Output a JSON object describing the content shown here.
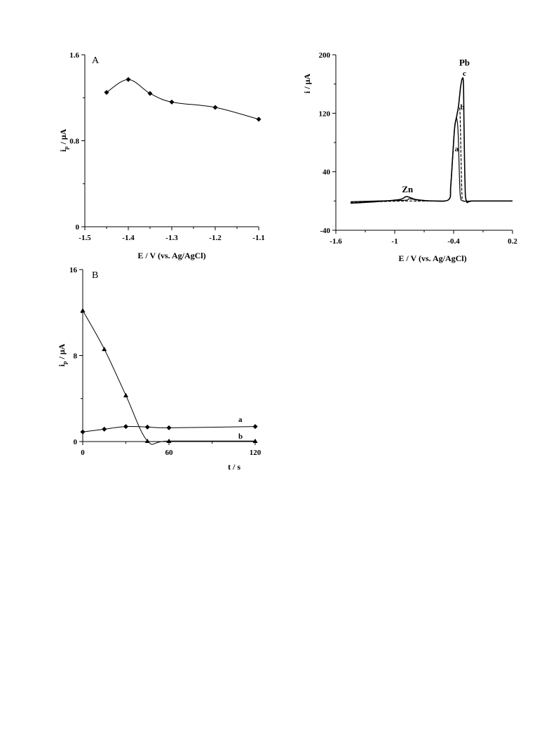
{
  "chart_data": [
    {
      "id": "A",
      "type": "scatter",
      "panel_label": "A",
      "xlabel": "E / V (vs. Ag/AgCl)",
      "ylabel_main": "i",
      "ylabel_sub": "p",
      "ylabel_rest": " / μA",
      "xlim": [
        -1.5,
        -1.1
      ],
      "ylim": [
        0,
        1.6
      ],
      "xticks": [
        -1.5,
        -1.4,
        -1.3,
        -1.2,
        -1.1
      ],
      "xtick_labels": [
        "-1.5",
        "-1.4",
        "-1.3",
        "-1.2",
        "-1.1"
      ],
      "yticks": [
        0,
        0.8,
        1.6
      ],
      "ytick_labels": [
        "0",
        "0.8",
        "1.6"
      ],
      "series": [
        {
          "marker": "diamond",
          "x": [
            -1.45,
            -1.4,
            -1.35,
            -1.3,
            -1.2,
            -1.1
          ],
          "y": [
            1.25,
            1.37,
            1.24,
            1.16,
            1.11,
            1.0
          ]
        }
      ]
    },
    {
      "id": "C",
      "type": "line",
      "xlabel": "E / V (vs. Ag/AgCl)",
      "ylabel": "i / μA",
      "xlim": [
        -1.6,
        0.2
      ],
      "ylim": [
        -40,
        200
      ],
      "xticks": [
        -1.6,
        -1.0,
        -0.4,
        0.2
      ],
      "xtick_labels": [
        "-1.6",
        "-1",
        "-0.4",
        "0.2"
      ],
      "yticks": [
        -40,
        40,
        120,
        200
      ],
      "ytick_labels": [
        "-40",
        "40",
        "120",
        "200"
      ],
      "annotations": [
        {
          "text": "Zn",
          "x": -0.87,
          "y": 12
        },
        {
          "text": "Pb",
          "x": -0.29,
          "y": 185
        },
        {
          "text": "c",
          "x": -0.29,
          "y": 171
        },
        {
          "text": "b",
          "x": -0.31,
          "y": 125
        },
        {
          "text": "a",
          "x": -0.37,
          "y": 68
        }
      ],
      "series": [
        {
          "name": "a",
          "dash": "solid",
          "x": [
            -1.45,
            -1.2,
            -0.9,
            -0.85,
            -0.75,
            -0.6,
            -0.45,
            -0.43,
            -0.41,
            -0.39,
            -0.37,
            -0.355,
            -0.34,
            -0.33,
            -0.3,
            -0.2,
            0.2
          ],
          "y": [
            -1,
            0,
            1,
            3,
            1,
            0,
            2,
            20,
            60,
            100,
            113,
            95,
            30,
            5,
            0,
            0,
            0
          ]
        },
        {
          "name": "b",
          "dash": "dashed",
          "x": [
            -1.45,
            -1.2,
            -0.9,
            -0.6,
            -0.45,
            -0.43,
            -0.41,
            -0.39,
            -0.37,
            -0.35,
            -0.335,
            -0.325,
            -0.315,
            -0.3,
            -0.2,
            0.2
          ],
          "y": [
            -2,
            -1,
            0,
            0,
            2,
            20,
            60,
            100,
            115,
            128,
            120,
            60,
            8,
            0,
            0,
            0
          ]
        },
        {
          "name": "c",
          "dash": "solid",
          "x": [
            -1.45,
            -1.2,
            -0.95,
            -0.88,
            -0.78,
            -0.6,
            -0.45,
            -0.43,
            -0.41,
            -0.39,
            -0.37,
            -0.35,
            -0.33,
            -0.31,
            -0.3,
            -0.295,
            -0.285,
            -0.27,
            -0.2,
            0.2
          ],
          "y": [
            -3,
            -1,
            2,
            6,
            2,
            0,
            2,
            20,
            60,
            100,
            115,
            130,
            155,
            168,
            160,
            110,
            30,
            0,
            0,
            0
          ]
        }
      ]
    },
    {
      "id": "B",
      "type": "line",
      "panel_label": "B",
      "xlabel": "t / s",
      "ylabel_main": "i",
      "ylabel_sub": "p",
      "ylabel_rest": " / μA",
      "xlim": [
        0,
        120
      ],
      "ylim": [
        0,
        16
      ],
      "xticks": [
        0,
        60,
        120
      ],
      "xtick_labels": [
        "0",
        "60",
        "120"
      ],
      "yticks": [
        0,
        8,
        16
      ],
      "ytick_labels": [
        "0",
        "8",
        "16"
      ],
      "series": [
        {
          "name": "a",
          "marker": "diamond",
          "x": [
            0,
            15,
            30,
            45,
            60,
            120
          ],
          "y": [
            0.9,
            1.15,
            1.4,
            1.35,
            1.28,
            1.4
          ]
        },
        {
          "name": "b",
          "marker": "triangle",
          "x": [
            0,
            15,
            30,
            45,
            60,
            120
          ],
          "y": [
            12.2,
            8.6,
            4.3,
            0.05,
            0.05,
            0.05
          ]
        }
      ]
    }
  ]
}
